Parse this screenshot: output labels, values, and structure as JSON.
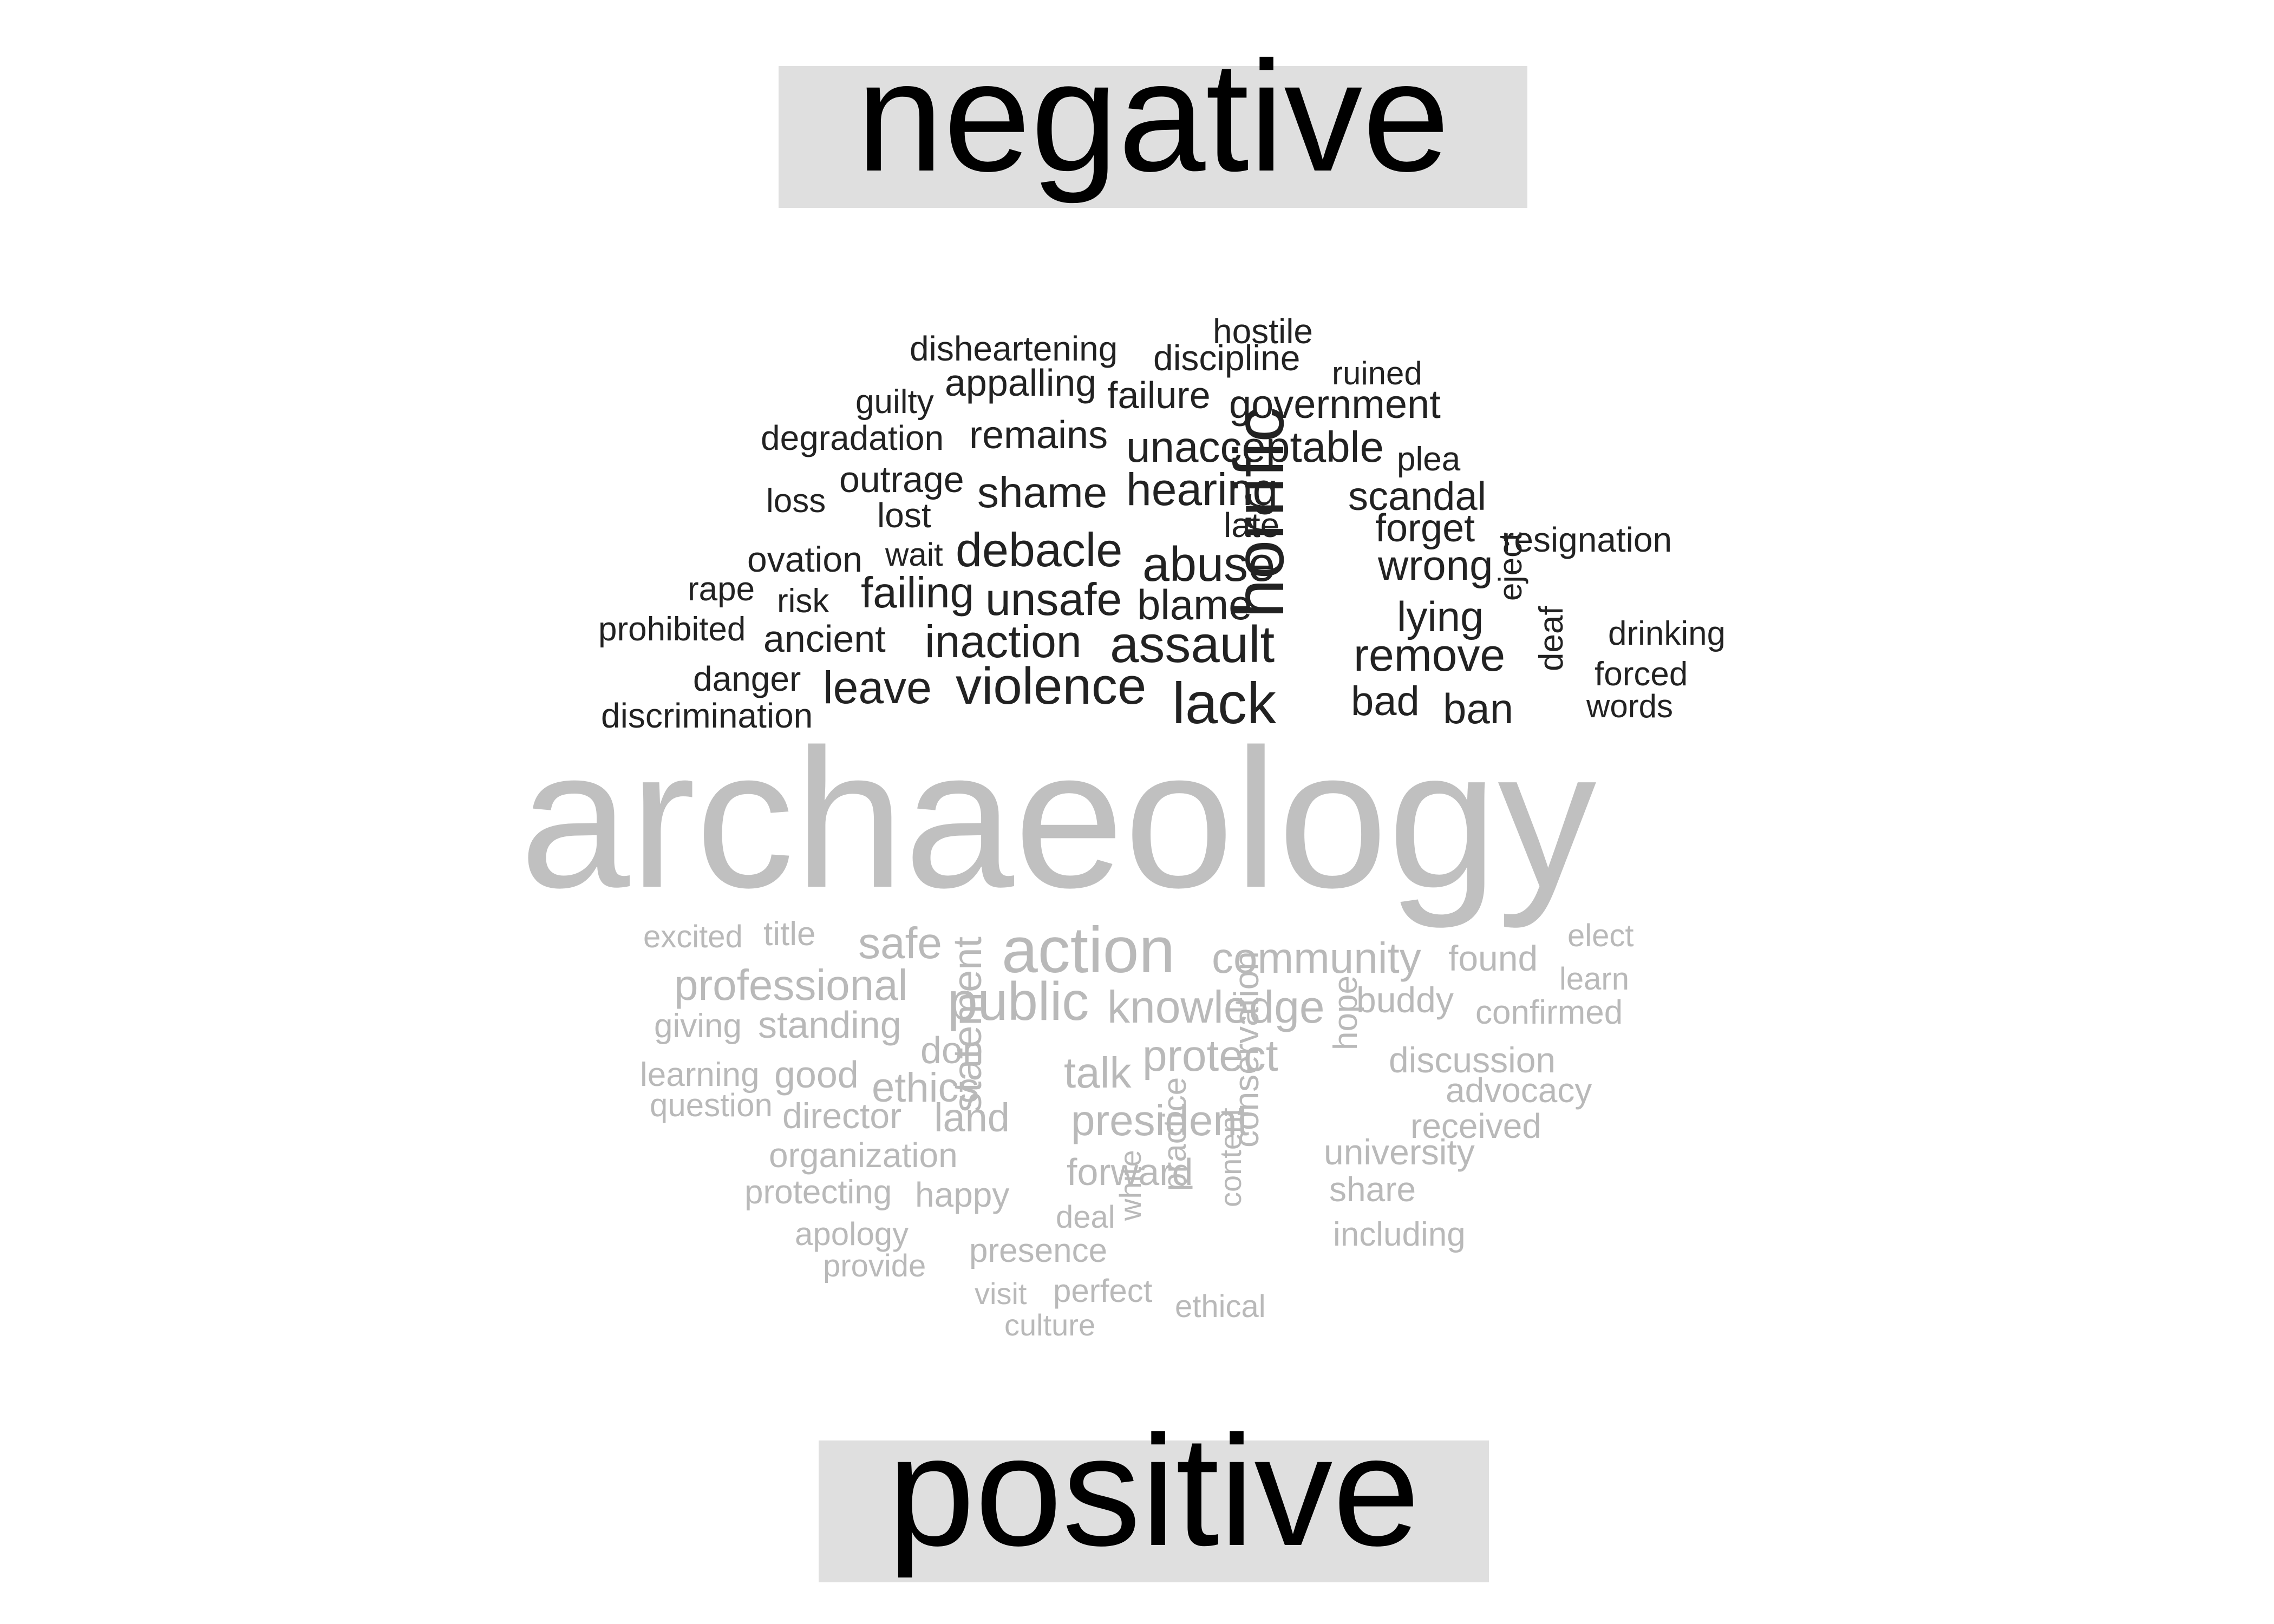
{
  "banners": {
    "negative": "negative",
    "positive": "positive"
  },
  "colors": {
    "negative_words": "#222222",
    "positive_words": "#b9b9b9",
    "center_word": "#c0c0c0",
    "banner_bg": "#dfdfdf"
  },
  "center_word": "archaeology",
  "negative_words": [
    {
      "text": "hostile"
    },
    {
      "text": "disheartening"
    },
    {
      "text": "discipline"
    },
    {
      "text": "ruined"
    },
    {
      "text": "guilty"
    },
    {
      "text": "appalling"
    },
    {
      "text": "failure"
    },
    {
      "text": "government"
    },
    {
      "text": "degradation"
    },
    {
      "text": "remains"
    },
    {
      "text": "unacceptable"
    },
    {
      "text": "plea"
    },
    {
      "text": "outrage"
    },
    {
      "text": "loss"
    },
    {
      "text": "shame"
    },
    {
      "text": "hearing"
    },
    {
      "text": "scandal"
    },
    {
      "text": "lost"
    },
    {
      "text": "late"
    },
    {
      "text": "forget"
    },
    {
      "text": "resignation"
    },
    {
      "text": "ovation"
    },
    {
      "text": "wait"
    },
    {
      "text": "debacle"
    },
    {
      "text": "abuse"
    },
    {
      "text": "wrong"
    },
    {
      "text": "rape"
    },
    {
      "text": "risk"
    },
    {
      "text": "failing"
    },
    {
      "text": "unsafe"
    },
    {
      "text": "blame"
    },
    {
      "text": "lying"
    },
    {
      "text": "eject"
    },
    {
      "text": "prohibited"
    },
    {
      "text": "ancient"
    },
    {
      "text": "inaction"
    },
    {
      "text": "assault"
    },
    {
      "text": "horrific"
    },
    {
      "text": "remove"
    },
    {
      "text": "drinking"
    },
    {
      "text": "danger"
    },
    {
      "text": "leave"
    },
    {
      "text": "violence"
    },
    {
      "text": "lack"
    },
    {
      "text": "deaf"
    },
    {
      "text": "forced"
    },
    {
      "text": "bad"
    },
    {
      "text": "ban"
    },
    {
      "text": "discrimination"
    },
    {
      "text": "words"
    }
  ],
  "positive_words": [
    {
      "text": "excited"
    },
    {
      "text": "title"
    },
    {
      "text": "safe"
    },
    {
      "text": "action"
    },
    {
      "text": "community"
    },
    {
      "text": "found"
    },
    {
      "text": "elect"
    },
    {
      "text": "professional"
    },
    {
      "text": "learn"
    },
    {
      "text": "public"
    },
    {
      "text": "knowledge"
    },
    {
      "text": "buddy"
    },
    {
      "text": "confirmed"
    },
    {
      "text": "giving"
    },
    {
      "text": "standing"
    },
    {
      "text": "don"
    },
    {
      "text": "protect"
    },
    {
      "text": "hope"
    },
    {
      "text": "discussion"
    },
    {
      "text": "learning"
    },
    {
      "text": "good"
    },
    {
      "text": "talk"
    },
    {
      "text": "ethics"
    },
    {
      "text": "advocacy"
    },
    {
      "text": "question"
    },
    {
      "text": "director"
    },
    {
      "text": "land"
    },
    {
      "text": "president"
    },
    {
      "text": "received"
    },
    {
      "text": "statement"
    },
    {
      "text": "conservation"
    },
    {
      "text": "organization"
    },
    {
      "text": "university"
    },
    {
      "text": "forward"
    },
    {
      "text": "protecting"
    },
    {
      "text": "happy"
    },
    {
      "text": "share"
    },
    {
      "text": "practice"
    },
    {
      "text": "content"
    },
    {
      "text": "deal"
    },
    {
      "text": "white"
    },
    {
      "text": "apology"
    },
    {
      "text": "including"
    },
    {
      "text": "presence"
    },
    {
      "text": "provide"
    },
    {
      "text": "perfect"
    },
    {
      "text": "visit"
    },
    {
      "text": "ethical"
    },
    {
      "text": "culture"
    }
  ]
}
